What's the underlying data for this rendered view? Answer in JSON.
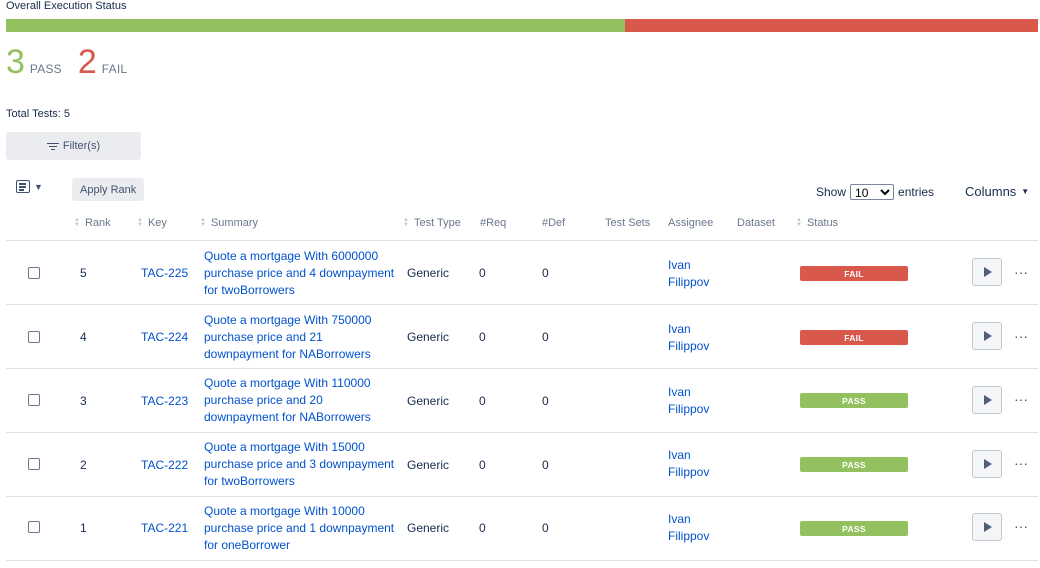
{
  "execution": {
    "title": "Overall Execution Status",
    "pass_count": "3",
    "pass_label": "PASS",
    "fail_count": "2",
    "fail_label": "FAIL",
    "pass_fraction": 0.6,
    "fail_fraction": 0.4,
    "pass_color": "#94c160",
    "fail_color": "#d9584c"
  },
  "total_tests": "Total Tests: 5",
  "filter_label": "Filter(s)",
  "toolbar": {
    "list_icon": "list-view-icon",
    "apply_rank_label": "Apply Rank",
    "show_label": "Show",
    "entries_value": "10",
    "entries_label": "entries",
    "columns_label": "Columns"
  },
  "table": {
    "headers": {
      "rank": "Rank",
      "key": "Key",
      "summary": "Summary",
      "test_type": "Test Type",
      "req": "#Req",
      "def": "#Def",
      "test_sets": "Test Sets",
      "assignee": "Assignee",
      "dataset": "Dataset",
      "status": "Status"
    },
    "rows": [
      {
        "rank": "5",
        "key": "TAC-225",
        "summary": "Quote a mortgage With 6000000 purchase price and 4 downpayment for twoBorrowers",
        "test_type": "Generic",
        "req": "0",
        "def": "0",
        "assignee": "Ivan Filippov",
        "status": "FAIL",
        "status_color": "#d9584c"
      },
      {
        "rank": "4",
        "key": "TAC-224",
        "summary": "Quote a mortgage With 750000 purchase price and 21 downpayment for NABorrowers",
        "test_type": "Generic",
        "req": "0",
        "def": "0",
        "assignee": "Ivan Filippov",
        "status": "FAIL",
        "status_color": "#d9584c"
      },
      {
        "rank": "3",
        "key": "TAC-223",
        "summary": "Quote a mortgage With 110000 purchase price and 20 downpayment for NABorrowers",
        "test_type": "Generic",
        "req": "0",
        "def": "0",
        "assignee": "Ivan Filippov",
        "status": "PASS",
        "status_color": "#94c160"
      },
      {
        "rank": "2",
        "key": "TAC-222",
        "summary": "Quote a mortgage With 15000 purchase price and 3 downpayment for twoBorrowers",
        "test_type": "Generic",
        "req": "0",
        "def": "0",
        "assignee": "Ivan Filippov",
        "status": "PASS",
        "status_color": "#94c160"
      },
      {
        "rank": "1",
        "key": "TAC-221",
        "summary": "Quote a mortgage With 10000 purchase price and 1 downpayment for oneBorrower",
        "test_type": "Generic",
        "req": "0",
        "def": "0",
        "assignee": "Ivan Filippov",
        "status": "PASS",
        "status_color": "#94c160"
      }
    ]
  },
  "icons": {
    "play": "play-icon",
    "more": "more-horizontal-icon",
    "sort": "sort-icon",
    "filter": "filter-icon",
    "caret": "chevron-down-icon"
  },
  "more_glyph": "···"
}
